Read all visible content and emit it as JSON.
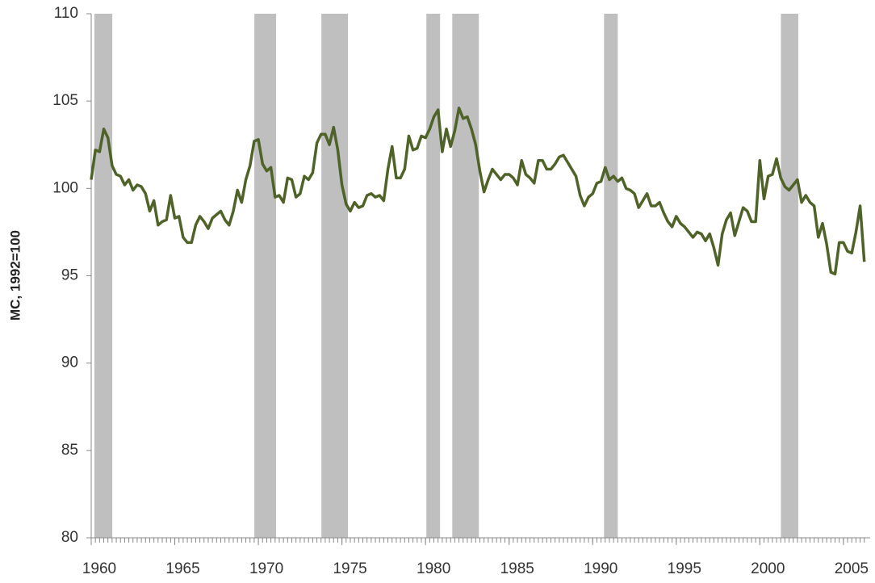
{
  "chart_data": {
    "type": "line",
    "ylabel": "MC, 1992=100",
    "xlim": [
      1960,
      2006.6
    ],
    "ylim": [
      80,
      110
    ],
    "yticks": [
      80,
      85,
      90,
      95,
      100,
      105,
      110
    ],
    "xticks": [
      1960,
      1965,
      1970,
      1975,
      1980,
      1985,
      1990,
      1995,
      2000,
      2005
    ],
    "recession_color": "#bfbfbf",
    "recessions": [
      [
        1960.19,
        1961.26
      ],
      [
        1969.76,
        1971.06
      ],
      [
        1973.77,
        1975.36
      ],
      [
        1980.05,
        1980.87
      ],
      [
        1981.6,
        1983.19
      ],
      [
        1990.68,
        1991.5
      ],
      [
        2001.26,
        2002.3
      ]
    ],
    "x": [
      1960,
      1960.25,
      1960.5,
      1960.75,
      1961,
      1961.25,
      1961.5,
      1961.75,
      1962,
      1962.25,
      1962.5,
      1962.75,
      1963,
      1963.25,
      1963.5,
      1963.75,
      1964,
      1964.25,
      1964.5,
      1964.75,
      1965,
      1965.25,
      1965.5,
      1965.75,
      1966,
      1966.25,
      1966.5,
      1966.75,
      1967,
      1967.25,
      1967.5,
      1967.75,
      1968,
      1968.25,
      1968.5,
      1968.75,
      1969,
      1969.25,
      1969.5,
      1969.75,
      1970,
      1970.25,
      1970.5,
      1970.75,
      1971,
      1971.25,
      1971.5,
      1971.75,
      1972,
      1972.25,
      1972.5,
      1972.75,
      1973,
      1973.25,
      1973.5,
      1973.75,
      1974,
      1974.25,
      1974.5,
      1974.75,
      1975,
      1975.25,
      1975.5,
      1975.75,
      1976,
      1976.25,
      1976.5,
      1976.75,
      1977,
      1977.25,
      1977.5,
      1977.75,
      1978,
      1978.25,
      1978.5,
      1978.75,
      1979,
      1979.25,
      1979.5,
      1979.75,
      1980,
      1980.25,
      1980.5,
      1980.75,
      1981,
      1981.25,
      1981.5,
      1981.75,
      1982,
      1982.25,
      1982.5,
      1982.75,
      1983,
      1983.25,
      1983.5,
      1983.75,
      1984,
      1984.25,
      1984.5,
      1984.75,
      1985,
      1985.25,
      1985.5,
      1985.75,
      1986,
      1986.25,
      1986.5,
      1986.75,
      1987,
      1987.25,
      1987.5,
      1987.75,
      1988,
      1988.25,
      1988.5,
      1988.75,
      1989,
      1989.25,
      1989.5,
      1989.75,
      1990,
      1990.25,
      1990.5,
      1990.75,
      1991,
      1991.25,
      1991.5,
      1991.75,
      1992,
      1992.25,
      1992.5,
      1992.75,
      1993,
      1993.25,
      1993.5,
      1993.75,
      1994,
      1994.25,
      1994.5,
      1994.75,
      1995,
      1995.25,
      1995.5,
      1995.75,
      1996,
      1996.25,
      1996.5,
      1996.75,
      1997,
      1997.25,
      1997.5,
      1997.75,
      1998,
      1998.25,
      1998.5,
      1998.75,
      1999,
      1999.25,
      1999.5,
      1999.75,
      2000,
      2000.25,
      2000.5,
      2000.75,
      2001,
      2001.25,
      2001.5,
      2001.75,
      2002,
      2002.25,
      2002.5,
      2002.75,
      2003,
      2003.25,
      2003.5,
      2003.75,
      2004,
      2004.25,
      2004.5,
      2004.75,
      2005,
      2005.25,
      2005.5,
      2005.75,
      2006,
      2006.25
    ],
    "series": [
      {
        "name": "MC",
        "color": "#4f6228",
        "values": [
          100.5,
          102.2,
          102.1,
          103.4,
          102.9,
          101.3,
          100.8,
          100.7,
          100.2,
          100.5,
          99.9,
          100.2,
          100.1,
          99.7,
          98.7,
          99.3,
          97.9,
          98.1,
          98.2,
          99.6,
          98.3,
          98.4,
          97.2,
          96.9,
          96.9,
          97.9,
          98.4,
          98.1,
          97.7,
          98.3,
          98.5,
          98.7,
          98.2,
          97.9,
          98.7,
          99.9,
          99.2,
          100.5,
          101.3,
          102.7,
          102.8,
          101.4,
          101.0,
          101.2,
          99.5,
          99.6,
          99.2,
          100.6,
          100.5,
          99.5,
          99.7,
          100.7,
          100.5,
          100.9,
          102.6,
          103.1,
          103.1,
          102.5,
          103.5,
          102.2,
          100.2,
          99.1,
          98.7,
          99.2,
          98.9,
          99.0,
          99.6,
          99.7,
          99.5,
          99.6,
          99.3,
          101.1,
          102.4,
          100.6,
          100.6,
          101.1,
          103.0,
          102.2,
          102.3,
          103.0,
          102.9,
          103.4,
          104.1,
          104.5,
          102.1,
          103.4,
          102.4,
          103.3,
          104.6,
          104.0,
          104.1,
          103.4,
          102.5,
          101.0,
          99.8,
          100.5,
          101.1,
          100.8,
          100.5,
          100.8,
          100.8,
          100.6,
          100.2,
          101.6,
          100.8,
          100.6,
          100.3,
          101.6,
          101.6,
          101.1,
          101.1,
          101.4,
          101.8,
          101.9,
          101.5,
          101.1,
          100.7,
          99.6,
          99.0,
          99.5,
          99.7,
          100.3,
          100.4,
          101.2,
          100.5,
          100.7,
          100.4,
          100.6,
          100.0,
          99.9,
          99.7,
          98.9,
          99.3,
          99.7,
          99.0,
          99.0,
          99.2,
          98.6,
          98.1,
          97.8,
          98.4,
          98.0,
          97.8,
          97.5,
          97.2,
          97.5,
          97.4,
          97.0,
          97.4,
          96.6,
          95.6,
          97.4,
          98.2,
          98.6,
          97.3,
          98.1,
          98.9,
          98.7,
          98.1,
          98.1,
          101.6,
          99.4,
          100.7,
          100.8,
          101.7,
          100.6,
          100.1,
          99.9,
          100.2,
          100.5,
          99.2,
          99.6,
          99.2,
          99.0,
          97.2,
          98.0,
          96.8,
          95.2,
          95.1,
          96.9,
          96.9,
          96.4,
          96.3,
          97.5,
          99.0,
          95.8
        ]
      }
    ]
  }
}
